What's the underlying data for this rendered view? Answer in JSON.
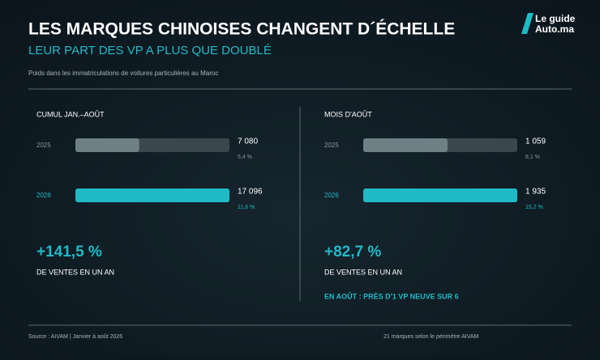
{
  "header": {
    "title": "LES MARQUES CHINOISES CHANGENT D´ÉCHELLE",
    "subtitle": "LEUR PART DES VP A PLUS QUE DOUBLÉ",
    "note": "Poids dans les immatriculations de voitures particulières au Maroc",
    "logo_line1": "Le guide",
    "logo_line2": "Auto.ma"
  },
  "panels": [
    {
      "title": "CUMUL JAN.–AOÛT",
      "rows": [
        {
          "year": "2025",
          "value": 7080,
          "value_label": "7 080",
          "share": "5,4 %"
        },
        {
          "year": "2026",
          "value": 17096,
          "value_label": "17 096",
          "share": "11,6 %"
        }
      ],
      "change": "+141,5 %",
      "change_caption": "DE VENTES EN UN AN"
    },
    {
      "title": "MOIS D'AOÛT",
      "rows": [
        {
          "year": "2025",
          "value": 1059,
          "value_label": "1 059",
          "share": "8,1 %"
        },
        {
          "year": "2026",
          "value": 1935,
          "value_label": "1 935",
          "share": "15,2 %"
        }
      ],
      "change": "+82,7 %",
      "change_caption": "DE VENTES EN UN AN",
      "footnote": "EN AOÛT : PRÈS D'1 VP NEUVE SUR 6"
    }
  ],
  "footer": {
    "source": "Source : AIVAM | Janvier à août 2026",
    "note": "21 marques selon le périmètre AIVAM"
  }
}
